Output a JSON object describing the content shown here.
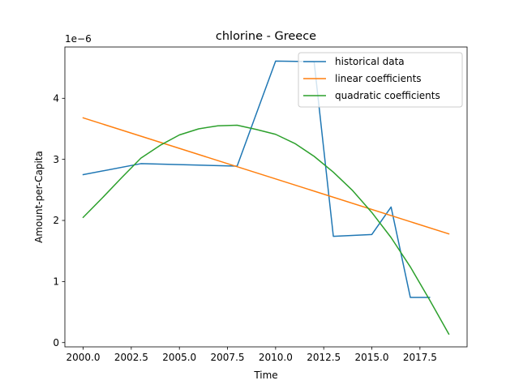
{
  "chart_data": {
    "type": "line",
    "title": "chlorine - Greece",
    "xlabel": "Time",
    "ylabel": "Amount-per-Capita",
    "y_offset_text": "1e−6",
    "xlim": [
      1999.05,
      2019.95
    ],
    "ylim": [
      -7e-08,
      4.84e-06
    ],
    "x_ticks": [
      2000,
      2002.5,
      2005,
      2007.5,
      2010,
      2012.5,
      2015,
      2017.5
    ],
    "x_tick_labels": [
      "2000.0",
      "2002.5",
      "2005.0",
      "2007.5",
      "2010.0",
      "2012.5",
      "2015.0",
      "2017.5"
    ],
    "y_ticks": [
      0,
      1e-06,
      2e-06,
      3e-06,
      4e-06
    ],
    "y_tick_labels": [
      "0",
      "1",
      "2",
      "3",
      "4"
    ],
    "legend_position": "top-right",
    "grid": false,
    "series": [
      {
        "name": "historical data",
        "color": "#1f77b4",
        "x": [
          2000,
          2003,
          2008,
          2010,
          2012,
          2013,
          2015,
          2016,
          2017,
          2018
        ],
        "y": [
          2.75e-06,
          2.93e-06,
          2.89e-06,
          4.61e-06,
          4.6e-06,
          1.74e-06,
          1.77e-06,
          2.22e-06,
          7.4e-07,
          7.4e-07
        ]
      },
      {
        "name": "linear coefficients",
        "color": "#ff7f0e",
        "x": [
          2000,
          2019
        ],
        "y": [
          3.68e-06,
          1.78e-06
        ]
      },
      {
        "name": "quadratic coefficients",
        "color": "#2ca02c",
        "x": [
          2000,
          2001,
          2002,
          2003,
          2004,
          2005,
          2006,
          2007,
          2008,
          2009,
          2010,
          2011,
          2012,
          2013,
          2014,
          2015,
          2016,
          2017,
          2018,
          2019
        ],
        "y": [
          2.05e-06,
          2.37e-06,
          2.7e-06,
          3.02e-06,
          3.23e-06,
          3.4e-06,
          3.5e-06,
          3.55e-06,
          3.56e-06,
          3.49e-06,
          3.41e-06,
          3.26e-06,
          3.05e-06,
          2.79e-06,
          2.49e-06,
          2.13e-06,
          1.72e-06,
          1.24e-06,
          7e-07,
          1.4e-07
        ]
      }
    ]
  }
}
